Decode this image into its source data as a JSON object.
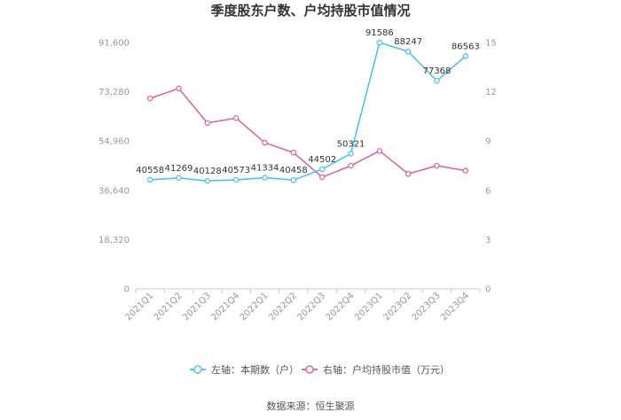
{
  "chart_data": {
    "type": "line",
    "title": "季度股东户数、户均持股市值情况",
    "categories": [
      "2021Q1",
      "2021Q2",
      "2021Q3",
      "2021Q4",
      "2022Q1",
      "2022Q2",
      "2022Q3",
      "2022Q4",
      "2023Q1",
      "2023Q2",
      "2023Q3",
      "2023Q4"
    ],
    "left_axis": {
      "min": 0,
      "max": 91600,
      "ticks": [
        "0",
        "18,320",
        "36,640",
        "54,960",
        "73,280",
        "91,600"
      ]
    },
    "right_axis": {
      "min": 0,
      "max": 15,
      "ticks": [
        "0",
        "3",
        "6",
        "9",
        "12",
        "15"
      ]
    },
    "series": [
      {
        "name": "左轴：本期数（户）",
        "axis": "left",
        "color": "#4fc3e8",
        "values": [
          40558,
          41269,
          40128,
          40573,
          41334,
          40458,
          44502,
          50321,
          91586,
          88247,
          77368,
          86563
        ],
        "labels": [
          "40558",
          "41269",
          "40128",
          "40573",
          "41334",
          "40458",
          "44502",
          "50321",
          "91586",
          "88247",
          "77368",
          "86563"
        ]
      },
      {
        "name": "右轴：户均持股市值（万元）",
        "axis": "right",
        "color": "#d9679e",
        "values": [
          11.6,
          12.2,
          10.1,
          10.4,
          8.9,
          8.3,
          6.8,
          7.5,
          8.4,
          7.0,
          7.5,
          7.2
        ]
      }
    ],
    "legend_position": "bottom",
    "grid": false
  },
  "source": "数据来源：恒生聚源"
}
